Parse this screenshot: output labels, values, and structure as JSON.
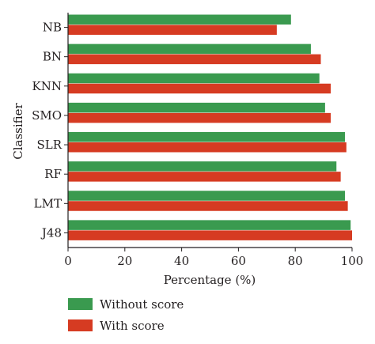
{
  "colors": {
    "without_score": "#3a9a4f",
    "with_score": "#d63b22",
    "axis": "#231f20"
  },
  "chart_data": {
    "type": "bar",
    "orientation": "horizontal",
    "title": "",
    "xlabel": "Percentage (%)",
    "ylabel": "Classifier",
    "xlim": [
      0,
      100
    ],
    "xticks": [
      0,
      20,
      40,
      60,
      80,
      100
    ],
    "grid": false,
    "legend_position": "bottom-left",
    "categories": [
      "NB",
      "BN",
      "KNN",
      "SMO",
      "SLR",
      "RF",
      "LMT",
      "J48"
    ],
    "series": [
      {
        "name": "Without score",
        "color": "#3a9a4f",
        "values": [
          78.5,
          85.5,
          88.5,
          90.5,
          97.5,
          94.5,
          97.5,
          99.5
        ]
      },
      {
        "name": "With score",
        "color": "#d63b22",
        "values": [
          73.5,
          89,
          92.5,
          92.5,
          98,
          96,
          98.5,
          100
        ]
      }
    ]
  }
}
